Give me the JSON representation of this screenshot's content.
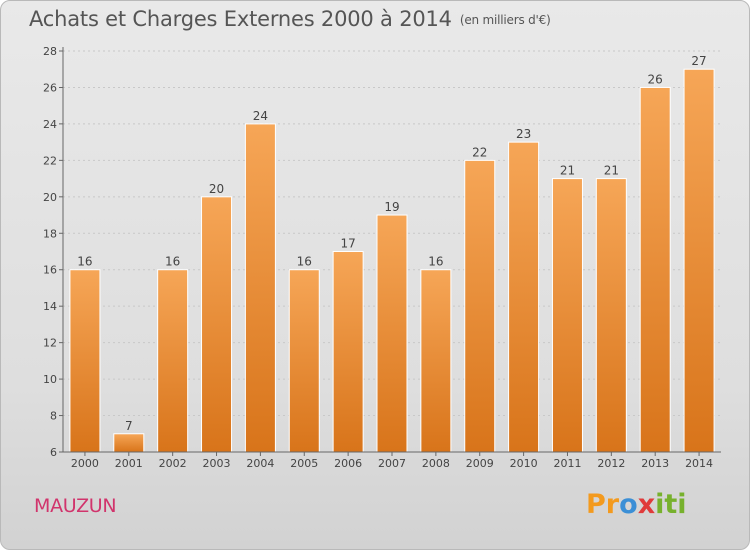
{
  "title": "Achats et Charges Externes 2000 à 2014",
  "unit_note": "(en milliers d'€)",
  "commune": "MAUZUN",
  "logo": {
    "letters": [
      "P",
      "r",
      "o",
      "x",
      "i",
      "t",
      "i"
    ],
    "colors": [
      "#f39a1e",
      "#f39a1e",
      "#3b8fd6",
      "#e03b3b",
      "#77b12d",
      "#77b12d",
      "#77b12d"
    ]
  },
  "colors": {
    "bar_top": "#f6a657",
    "bar_bottom": "#d8741a",
    "text": "#555555",
    "commune": "#d1346c"
  },
  "chart_data": {
    "type": "bar",
    "title": "Achats et Charges Externes 2000 à 2014",
    "xlabel": "",
    "ylabel": "",
    "ylim": [
      6,
      28
    ],
    "yticks": [
      6,
      8,
      10,
      12,
      14,
      16,
      18,
      20,
      22,
      24,
      26,
      28
    ],
    "grid": true,
    "categories": [
      "2000",
      "2001",
      "2002",
      "2003",
      "2004",
      "2005",
      "2006",
      "2007",
      "2008",
      "2009",
      "2010",
      "2011",
      "2012",
      "2013",
      "2014"
    ],
    "values": [
      16,
      7,
      16,
      20,
      24,
      16,
      17,
      19,
      16,
      22,
      23,
      21,
      21,
      26,
      27
    ]
  }
}
